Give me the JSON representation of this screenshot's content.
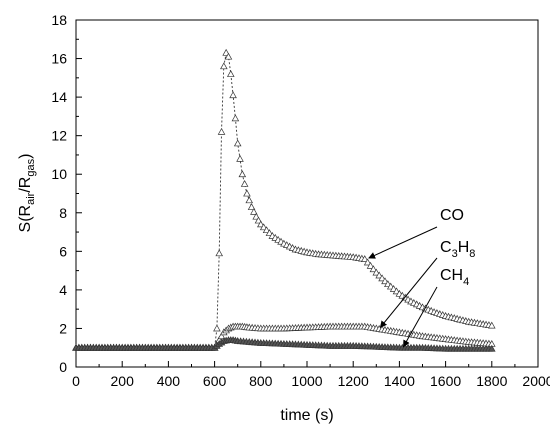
{
  "chart_data": {
    "type": "line",
    "xlabel": "time (s)",
    "ylabel": {
      "prefix": "S(R",
      "sub1": "air",
      "mid": "/R",
      "sub2": "gas",
      "suffix": ")"
    },
    "xlim": [
      0,
      2000
    ],
    "ylim": [
      0,
      18
    ],
    "x_ticks": [
      0,
      200,
      400,
      600,
      800,
      1000,
      1200,
      1400,
      1600,
      1800,
      2000
    ],
    "y_ticks": [
      0,
      2,
      4,
      6,
      8,
      10,
      12,
      14,
      16,
      18
    ],
    "grid": false,
    "marker": "open-triangle",
    "series": [
      {
        "name": "CO",
        "x": [
          0,
          100,
          200,
          300,
          400,
          500,
          600,
          610,
          620,
          630,
          640,
          650,
          660,
          670,
          680,
          690,
          700,
          720,
          740,
          760,
          780,
          800,
          850,
          900,
          950,
          1000,
          1050,
          1100,
          1150,
          1200,
          1250,
          1300,
          1350,
          1400,
          1450,
          1500,
          1550,
          1600,
          1650,
          1700,
          1750,
          1800
        ],
        "y": [
          1.0,
          1.0,
          1.0,
          1.0,
          1.0,
          1.0,
          1.0,
          2.0,
          5.9,
          12.2,
          15.6,
          16.3,
          16.1,
          15.2,
          14.1,
          12.9,
          11.6,
          10.0,
          9.0,
          8.3,
          7.8,
          7.4,
          6.8,
          6.4,
          6.1,
          5.95,
          5.85,
          5.8,
          5.75,
          5.7,
          5.6,
          4.9,
          4.3,
          3.8,
          3.4,
          3.1,
          2.85,
          2.65,
          2.5,
          2.35,
          2.25,
          2.15
        ]
      },
      {
        "name": "C3H8",
        "x": [
          0,
          100,
          200,
          300,
          400,
          500,
          600,
          620,
          640,
          660,
          680,
          700,
          720,
          750,
          800,
          900,
          1000,
          1100,
          1200,
          1250,
          1300,
          1400,
          1500,
          1600,
          1700,
          1800
        ],
        "y": [
          1.0,
          1.0,
          1.0,
          1.0,
          1.0,
          1.0,
          1.0,
          1.4,
          1.8,
          2.0,
          2.1,
          2.1,
          2.1,
          2.05,
          2.0,
          2.0,
          2.05,
          2.1,
          2.1,
          2.1,
          2.0,
          1.8,
          1.6,
          1.45,
          1.3,
          1.2
        ]
      },
      {
        "name": "CH4",
        "x": [
          0,
          100,
          200,
          300,
          400,
          500,
          600,
          620,
          640,
          660,
          680,
          700,
          750,
          800,
          900,
          1000,
          1100,
          1200,
          1300,
          1400,
          1500,
          1600,
          1700,
          1800
        ],
        "y": [
          1.0,
          1.0,
          1.0,
          1.0,
          1.0,
          1.0,
          1.0,
          1.2,
          1.35,
          1.4,
          1.4,
          1.35,
          1.3,
          1.25,
          1.2,
          1.15,
          1.1,
          1.1,
          1.05,
          1.0,
          1.0,
          0.95,
          0.95,
          0.95
        ]
      }
    ],
    "annotations": [
      {
        "label": "CO",
        "main": "CO",
        "sub": "",
        "main2": "",
        "sub2": "",
        "arrow_to": [
          1250,
          5.6
        ]
      },
      {
        "label": "C3H8",
        "main": "C",
        "sub": "3",
        "main2": "H",
        "sub2": "8",
        "arrow_to": [
          1300,
          2.0
        ]
      },
      {
        "label": "CH4",
        "main": "CH",
        "sub": "4",
        "main2": "",
        "sub2": "",
        "arrow_to": [
          1400,
          1.0
        ]
      }
    ]
  }
}
